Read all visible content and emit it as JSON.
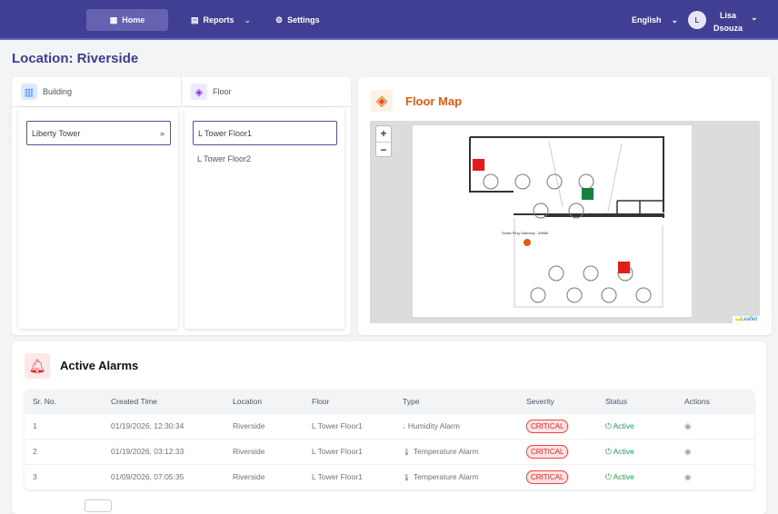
{
  "nav": {
    "home": "Home",
    "reports": "Reports",
    "settings": "Settings",
    "language": "English",
    "avatar_initial": "L",
    "user_first": "Lisa",
    "user_last": "Dsouza"
  },
  "page": {
    "title": "Location: Riverside"
  },
  "selector": {
    "building_tab": "Building",
    "floor_tab": "Floor",
    "buildings": [
      "Liberty Tower"
    ],
    "floors": [
      "L Tower Floor1",
      "L Tower Floor2"
    ]
  },
  "floor_map": {
    "title": "Floor Map",
    "zoom_in": "+",
    "zoom_out": "−",
    "gateway_label": "Smart Plug Gateway - 89686",
    "attribution": "Leaflet"
  },
  "alarms": {
    "title": "Active Alarms",
    "columns": [
      "Sr. No.",
      "Created Time",
      "Location",
      "Floor",
      "Type",
      "Severity",
      "Status",
      "Actions"
    ],
    "rows": [
      {
        "sr": "1",
        "time": "01/19/2026, 12:30:34",
        "location": "Riverside",
        "floor": "L Tower Floor1",
        "type": "Humidity Alarm",
        "type_icon": "droplet-icon",
        "severity": "CRITICAL",
        "status": "Active"
      },
      {
        "sr": "2",
        "time": "01/19/2026, 03:12:33",
        "location": "Riverside",
        "floor": "L Tower Floor1",
        "type": "Temperature Alarm",
        "type_icon": "thermometer-icon",
        "severity": "CRITICAL",
        "status": "Active"
      },
      {
        "sr": "3",
        "time": "01/09/2026, 07:05:35",
        "location": "Riverside",
        "floor": "L Tower Floor1",
        "type": "Temperature Alarm",
        "type_icon": "thermometer-icon",
        "severity": "CRITICAL",
        "status": "Active"
      }
    ]
  },
  "colors": {
    "nav": "#413f93",
    "accent": "#ea580c",
    "critical": "#dc2626",
    "active": "#16a34a"
  }
}
